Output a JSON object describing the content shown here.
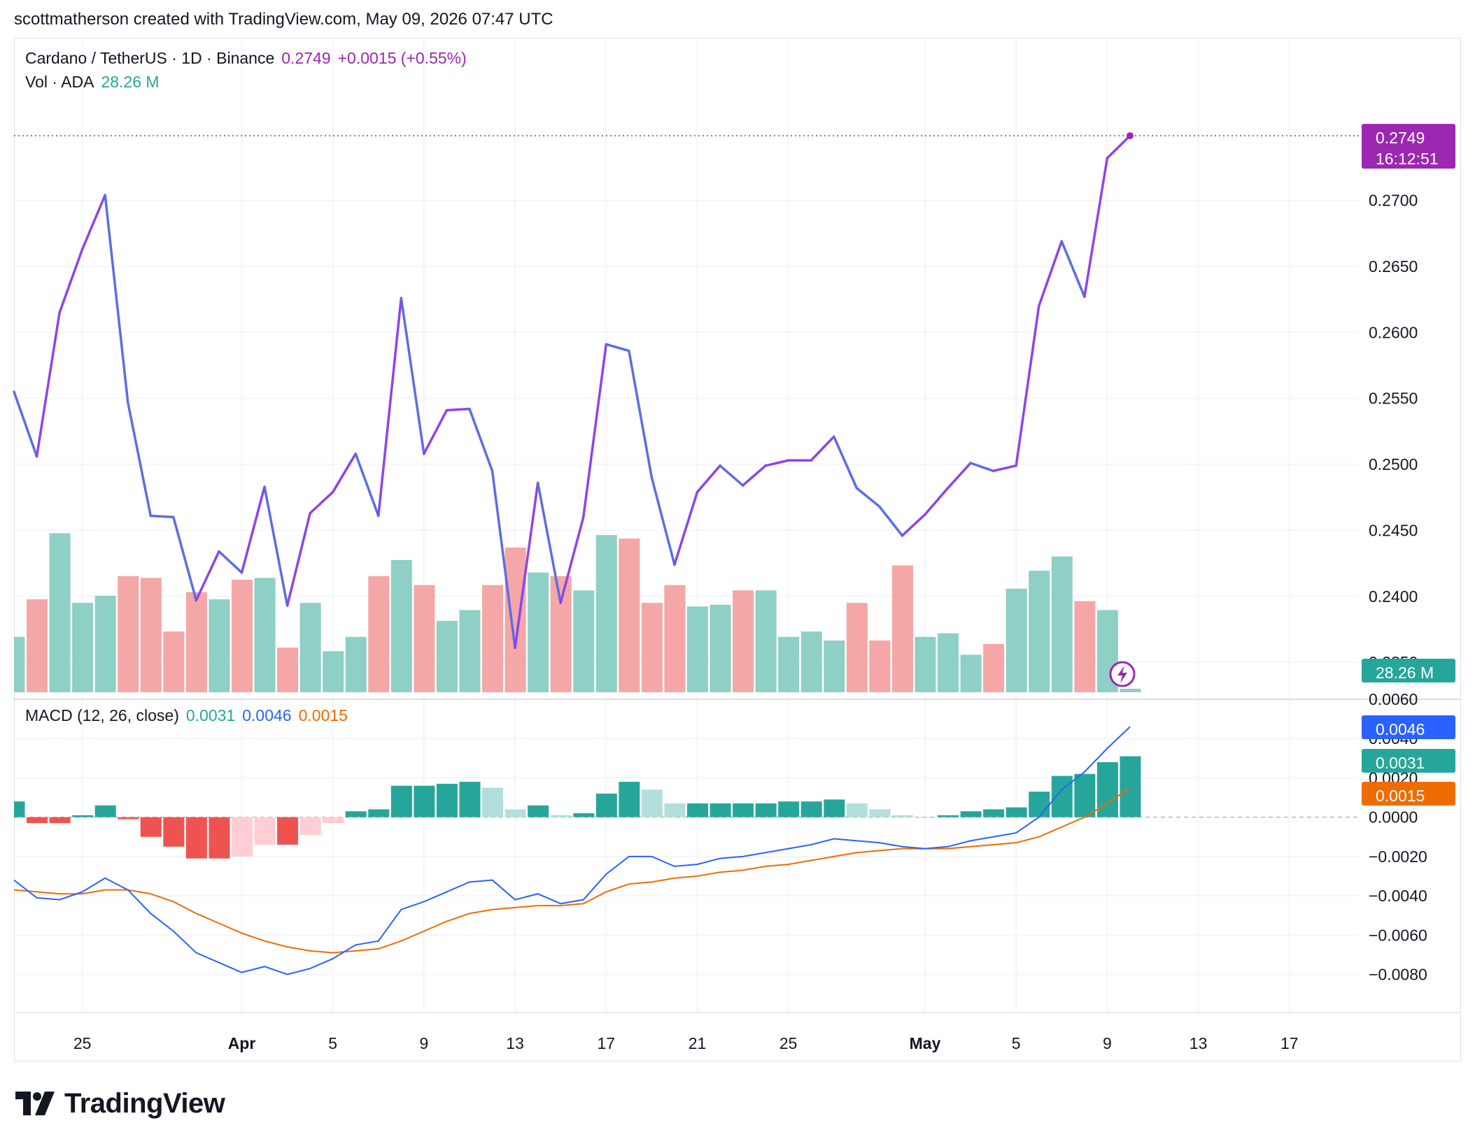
{
  "header": {
    "credit": "scottmatherson created with TradingView.com, May 09, 2026 07:47 UTC"
  },
  "legend": {
    "symbol": "Cardano / TetherUS · 1D · Binance",
    "price": "0.2749",
    "change": "+0.0015 (+0.55%)",
    "vol_label": "Vol · ADA",
    "vol_value": "28.26 M",
    "macd_label": "MACD (12, 26, close)",
    "macd_hist": "0.0031",
    "macd_line": "0.0046",
    "macd_signal": "0.0015"
  },
  "badges": {
    "price": "0.2749",
    "countdown": "16:12:51",
    "volume": "28.26 M",
    "macd": "0.0046",
    "hist": "0.0031",
    "signal": "0.0015"
  },
  "colors": {
    "price_up": "#9c27b0",
    "price_down": "#5b6ee1",
    "vol_up": "#8ecfc6",
    "vol_down": "#f5a6a6",
    "hist_up_strong": "#26a69a",
    "hist_up_weak": "#b2dfdb",
    "hist_down_strong": "#ef5350",
    "hist_down_weak": "#ffcdd2",
    "macd": "#2962ff",
    "signal": "#ef6c00"
  },
  "logo": {
    "text": "TradingView",
    "icon": "tradingview-logo-icon"
  },
  "chart_data": {
    "type": "line",
    "title": "Cardano / TetherUS · 1D · Binance",
    "x_ticks": [
      {
        "day": 3,
        "label": "25"
      },
      {
        "day": 10,
        "label": "Apr",
        "bold": true
      },
      {
        "day": 14,
        "label": "5"
      },
      {
        "day": 18,
        "label": "9"
      },
      {
        "day": 22,
        "label": "13"
      },
      {
        "day": 26,
        "label": "17"
      },
      {
        "day": 30,
        "label": "21"
      },
      {
        "day": 34,
        "label": "25"
      },
      {
        "day": 40,
        "label": "May",
        "bold": true
      },
      {
        "day": 44,
        "label": "5"
      },
      {
        "day": 48,
        "label": "9"
      },
      {
        "day": 52,
        "label": "13"
      },
      {
        "day": 56,
        "label": "17"
      }
    ],
    "price": {
      "ylim": [
        0.2322,
        0.2775
      ],
      "y_ticks": [
        "0.2350",
        "0.2400",
        "0.2450",
        "0.2500",
        "0.2550",
        "0.2600",
        "0.2650",
        "0.2700"
      ],
      "last": 0.2749,
      "values": [
        0.2555,
        0.2506,
        0.2615,
        0.2663,
        0.2704,
        0.2547,
        0.2461,
        0.246,
        0.2397,
        0.2434,
        0.2418,
        0.2483,
        0.2393,
        0.2463,
        0.2479,
        0.2508,
        0.2461,
        0.2626,
        0.2508,
        0.2541,
        0.2542,
        0.2495,
        0.2361,
        0.2486,
        0.2395,
        0.246,
        0.2591,
        0.2586,
        0.249,
        0.2424,
        0.2479,
        0.2499,
        0.2484,
        0.2499,
        0.2503,
        0.2503,
        0.2521,
        0.2482,
        0.2468,
        0.2446,
        0.2462,
        0.2482,
        0.2501,
        0.2495,
        0.2499,
        0.262,
        0.2669,
        0.2627,
        0.2732,
        0.2749
      ]
    },
    "volume": {
      "unit": "M ADA",
      "last": 28.26,
      "max": 90,
      "values": [
        31,
        52,
        89,
        50,
        54,
        65,
        64,
        34,
        56,
        52,
        63,
        64,
        25,
        50,
        23,
        31,
        65,
        74,
        60,
        40,
        46,
        60,
        81,
        67,
        65,
        57,
        88,
        86,
        50,
        60,
        48,
        49,
        57,
        57,
        31,
        34,
        29,
        50,
        29,
        71,
        31,
        33,
        21,
        27,
        58,
        68,
        76,
        51,
        46,
        2
      ],
      "up": [
        1,
        0,
        1,
        1,
        1,
        0,
        0,
        0,
        0,
        1,
        0,
        1,
        0,
        1,
        1,
        1,
        0,
        1,
        0,
        1,
        1,
        0,
        0,
        1,
        0,
        1,
        1,
        0,
        0,
        0,
        1,
        1,
        0,
        1,
        1,
        1,
        1,
        0,
        0,
        0,
        1,
        1,
        1,
        0,
        1,
        1,
        1,
        0,
        1,
        1
      ]
    },
    "macd": {
      "ylim": [
        -0.0093,
        0.006
      ],
      "y_ticks": [
        "0.0060",
        "0.0040",
        "0.0020",
        "0.0000",
        "−0.0020",
        "−0.0040",
        "−0.0060",
        "−0.0080"
      ],
      "macd_line": [
        -0.0032,
        -0.0041,
        -0.0042,
        -0.0038,
        -0.0031,
        -0.0037,
        -0.0049,
        -0.0058,
        -0.0069,
        -0.0074,
        -0.0079,
        -0.0076,
        -0.008,
        -0.0077,
        -0.0072,
        -0.0065,
        -0.0063,
        -0.0047,
        -0.0043,
        -0.0038,
        -0.0033,
        -0.0032,
        -0.0042,
        -0.0039,
        -0.0044,
        -0.0042,
        -0.0029,
        -0.002,
        -0.002,
        -0.0025,
        -0.0024,
        -0.0021,
        -0.002,
        -0.0018,
        -0.0016,
        -0.0014,
        -0.0011,
        -0.0012,
        -0.0013,
        -0.0015,
        -0.0016,
        -0.0015,
        -0.0012,
        -0.001,
        -0.0008,
        0.0,
        0.0014,
        0.0023,
        0.0035,
        0.0046
      ],
      "signal_line": [
        -0.0037,
        -0.0038,
        -0.0039,
        -0.0039,
        -0.0037,
        -0.0037,
        -0.0039,
        -0.0043,
        -0.0049,
        -0.0054,
        -0.0059,
        -0.0063,
        -0.0066,
        -0.0068,
        -0.0069,
        -0.0068,
        -0.0067,
        -0.0063,
        -0.0058,
        -0.0053,
        -0.0049,
        -0.0047,
        -0.0046,
        -0.0045,
        -0.0045,
        -0.0044,
        -0.0038,
        -0.0034,
        -0.0033,
        -0.0031,
        -0.003,
        -0.0028,
        -0.0027,
        -0.0025,
        -0.0024,
        -0.0022,
        -0.002,
        -0.0018,
        -0.0017,
        -0.0016,
        -0.0016,
        -0.0016,
        -0.0015,
        -0.0014,
        -0.0013,
        -0.001,
        -0.0005,
        0.0,
        0.0007,
        0.0015
      ],
      "histogram": [
        0.0008,
        -0.0003,
        -0.0003,
        0.0001,
        0.0006,
        -0.0001,
        -0.001,
        -0.0015,
        -0.0021,
        -0.0021,
        -0.002,
        -0.0014,
        -0.0014,
        -0.0009,
        -0.0003,
        0.0003,
        0.0004,
        0.0016,
        0.0016,
        0.0017,
        0.0018,
        0.0015,
        0.0004,
        0.0006,
        0.0001,
        0.0002,
        0.0012,
        0.0018,
        0.0014,
        0.0007,
        0.0007,
        0.0007,
        0.0007,
        0.0007,
        0.0008,
        0.0008,
        0.0009,
        0.0007,
        0.0004,
        0.0001,
        0.0,
        0.0001,
        0.0003,
        0.0004,
        0.0005,
        0.0013,
        0.0021,
        0.0022,
        0.0028,
        0.0031
      ]
    }
  }
}
